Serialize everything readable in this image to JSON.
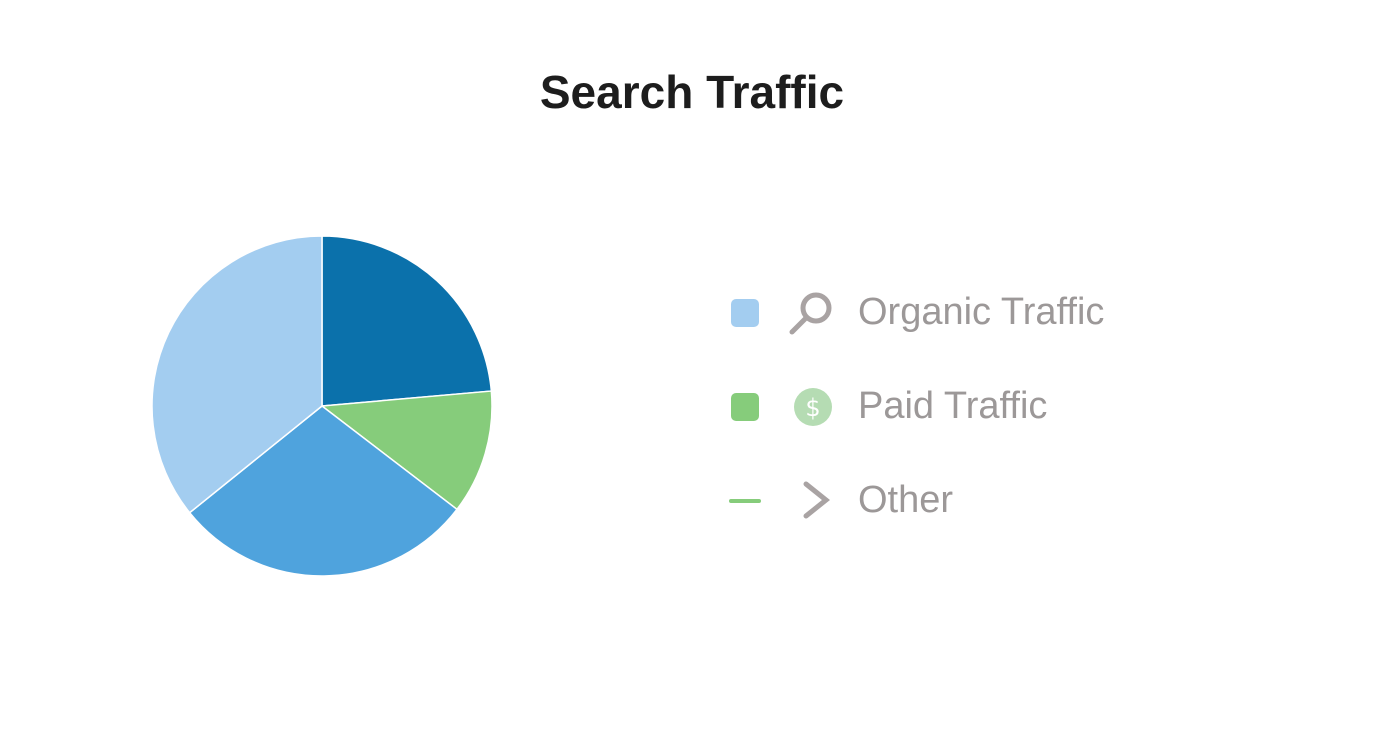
{
  "chart_data": {
    "type": "pie",
    "title": "Search Traffic",
    "values": [
      23.6,
      11.8,
      28.8,
      35.8
    ],
    "colors": [
      "#0b71ab",
      "#86cc7b",
      "#4fa3dd",
      "#a3cdf0"
    ],
    "legend": [
      {
        "label": "Organic Traffic",
        "color": "#a3cdf0",
        "marker": "square"
      },
      {
        "label": "Paid Traffic",
        "color": "#86cc7b",
        "marker": "square"
      },
      {
        "label": "Other",
        "color": "#86cc7b",
        "marker": "line"
      }
    ]
  }
}
